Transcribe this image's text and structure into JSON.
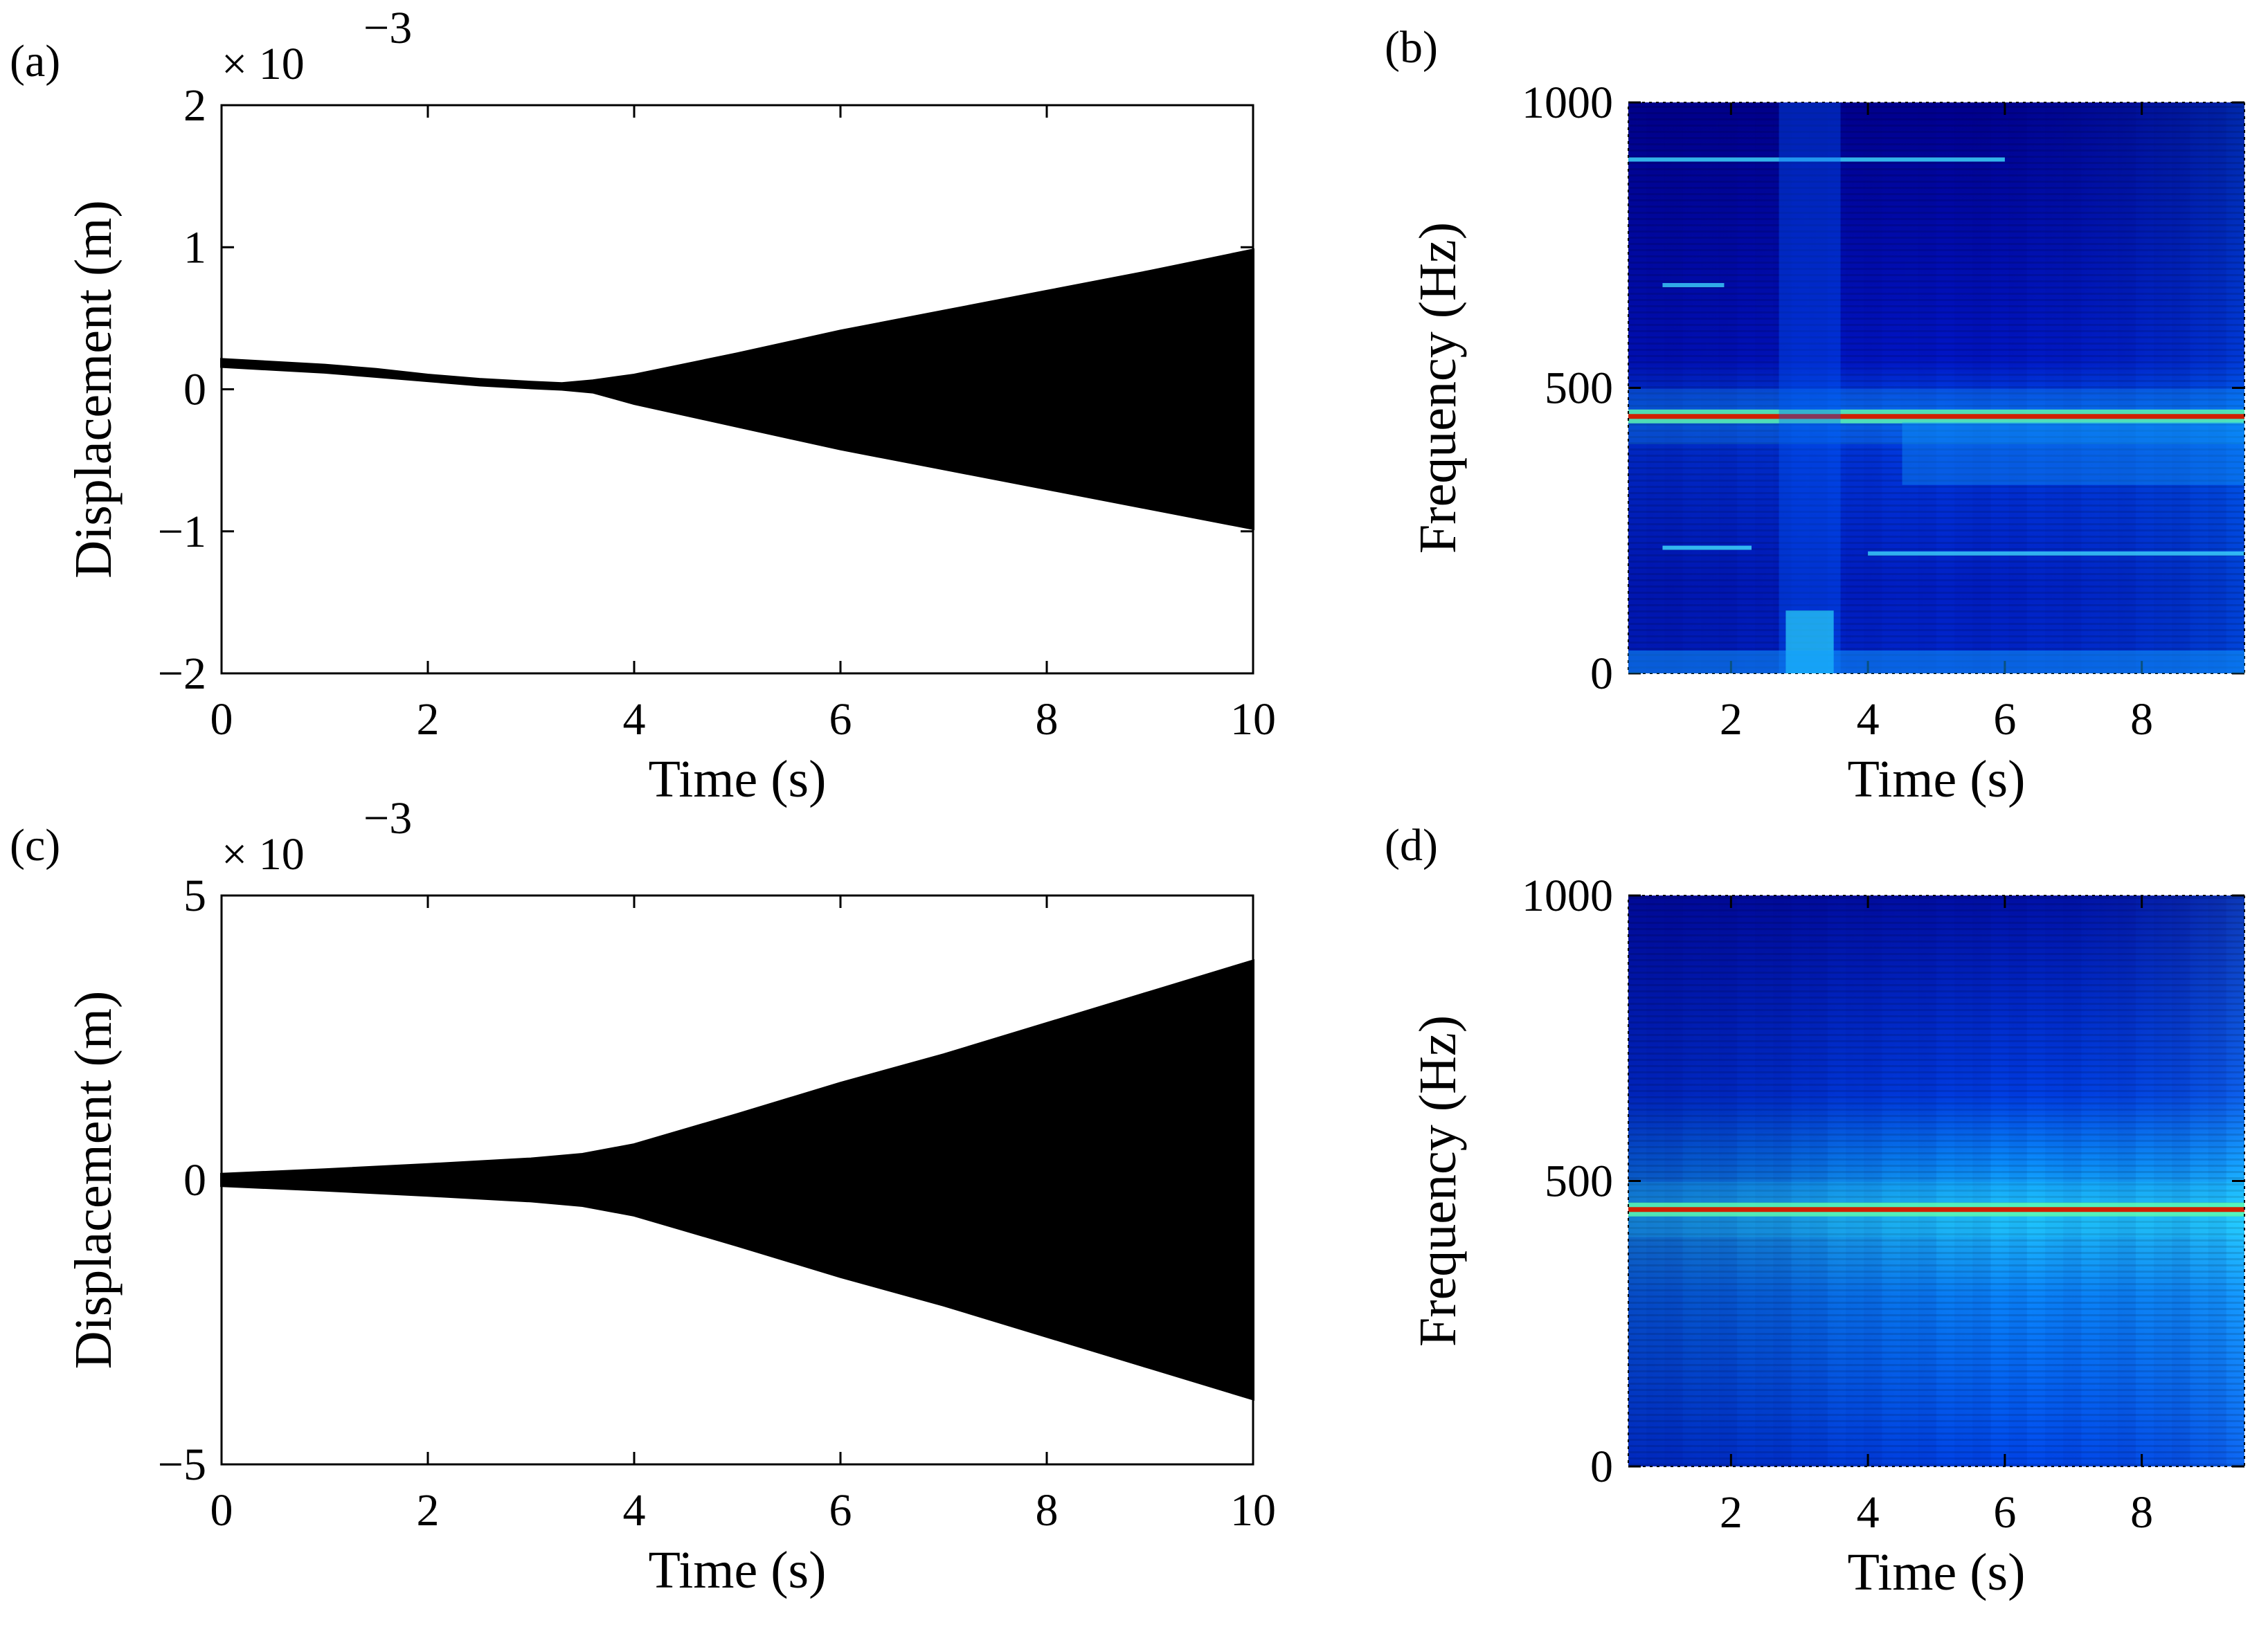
{
  "chart_data": [
    {
      "id": "a",
      "panel_label": "(a)",
      "type": "area",
      "title": "",
      "xlabel": "Time (s)",
      "ylabel": "Displacement (m)",
      "xlim": [
        0,
        10
      ],
      "ylim": [
        -2,
        2
      ],
      "xticks": [
        0,
        2,
        4,
        6,
        8,
        10
      ],
      "xtick_labels": [
        "0",
        "2",
        "4",
        "6",
        "8",
        "10"
      ],
      "yticks": [
        -2,
        -1,
        0,
        1,
        2
      ],
      "ytick_labels": [
        "−2",
        "−1",
        "0",
        "1",
        "2"
      ],
      "scale_base": "× 10",
      "scale_exp": "−3",
      "envelope": {
        "t": [
          0,
          0.5,
          1,
          1.5,
          2,
          2.5,
          3,
          3.3,
          3.6,
          4,
          5,
          6,
          7,
          8,
          9,
          10
        ],
        "upper": [
          0.21,
          0.19,
          0.17,
          0.14,
          0.1,
          0.07,
          0.05,
          0.04,
          0.06,
          0.1,
          0.25,
          0.41,
          0.55,
          0.69,
          0.83,
          0.98
        ],
        "lower": [
          0.16,
          0.14,
          0.12,
          0.09,
          0.06,
          0.03,
          0.01,
          0.0,
          -0.02,
          -0.1,
          -0.26,
          -0.42,
          -0.56,
          -0.7,
          -0.84,
          -0.98
        ]
      }
    },
    {
      "id": "b",
      "panel_label": "(b)",
      "type": "heatmap",
      "title": "",
      "xlabel": "Time (s)",
      "ylabel": "Frequency (Hz)",
      "xlim": [
        0.5,
        9.5
      ],
      "ylim": [
        0,
        1000
      ],
      "xticks": [
        2,
        4,
        6,
        8
      ],
      "xtick_labels": [
        "2",
        "4",
        "6",
        "8"
      ],
      "yticks": [
        0,
        500,
        1000
      ],
      "ytick_labels": [
        "0",
        "500",
        "1000"
      ],
      "colormap": "jet",
      "lines": [
        {
          "freq": 450,
          "t_start": 0.5,
          "t_end": 9.5,
          "intensity": 0.9
        },
        {
          "freq": 900,
          "t_start": 0.5,
          "t_end": 6.0,
          "intensity": 0.5
        },
        {
          "freq": 680,
          "t_start": 1.0,
          "t_end": 1.9,
          "intensity": 0.45
        },
        {
          "freq": 220,
          "t_start": 1.0,
          "t_end": 2.3,
          "intensity": 0.5
        },
        {
          "freq": 210,
          "t_start": 4.0,
          "t_end": 9.5,
          "intensity": 0.45
        }
      ]
    },
    {
      "id": "c",
      "panel_label": "(c)",
      "type": "area",
      "title": "",
      "xlabel": "Time (s)",
      "ylabel": "Displacement (m)",
      "xlim": [
        0,
        10
      ],
      "ylim": [
        -5,
        5
      ],
      "xticks": [
        0,
        2,
        4,
        6,
        8,
        10
      ],
      "xtick_labels": [
        "0",
        "2",
        "4",
        "6",
        "8",
        "10"
      ],
      "yticks": [
        -5,
        0,
        5
      ],
      "ytick_labels": [
        "−5",
        "0",
        "5"
      ],
      "scale_base": "× 10",
      "scale_exp": "−3",
      "envelope": {
        "t": [
          0,
          1,
          2,
          3,
          3.5,
          4,
          5,
          6,
          7,
          8,
          9,
          10
        ],
        "upper": [
          0.1,
          0.18,
          0.27,
          0.37,
          0.45,
          0.62,
          1.15,
          1.7,
          2.2,
          2.75,
          3.3,
          3.85
        ],
        "lower": [
          -0.1,
          -0.18,
          -0.27,
          -0.37,
          -0.45,
          -0.62,
          -1.15,
          -1.7,
          -2.2,
          -2.75,
          -3.3,
          -3.85
        ]
      }
    },
    {
      "id": "d",
      "panel_label": "(d)",
      "type": "heatmap",
      "title": "",
      "xlabel": "Time (s)",
      "ylabel": "Frequency (Hz)",
      "xlim": [
        0.5,
        9.5
      ],
      "ylim": [
        0,
        1000
      ],
      "xticks": [
        2,
        4,
        6,
        8
      ],
      "xtick_labels": [
        "2",
        "4",
        "6",
        "8"
      ],
      "yticks": [
        0,
        500,
        1000
      ],
      "ytick_labels": [
        "0",
        "500",
        "1000"
      ],
      "colormap": "jet",
      "lines": [
        {
          "freq": 450,
          "t_start": 0.5,
          "t_end": 9.5,
          "intensity": 1.0
        }
      ]
    }
  ]
}
